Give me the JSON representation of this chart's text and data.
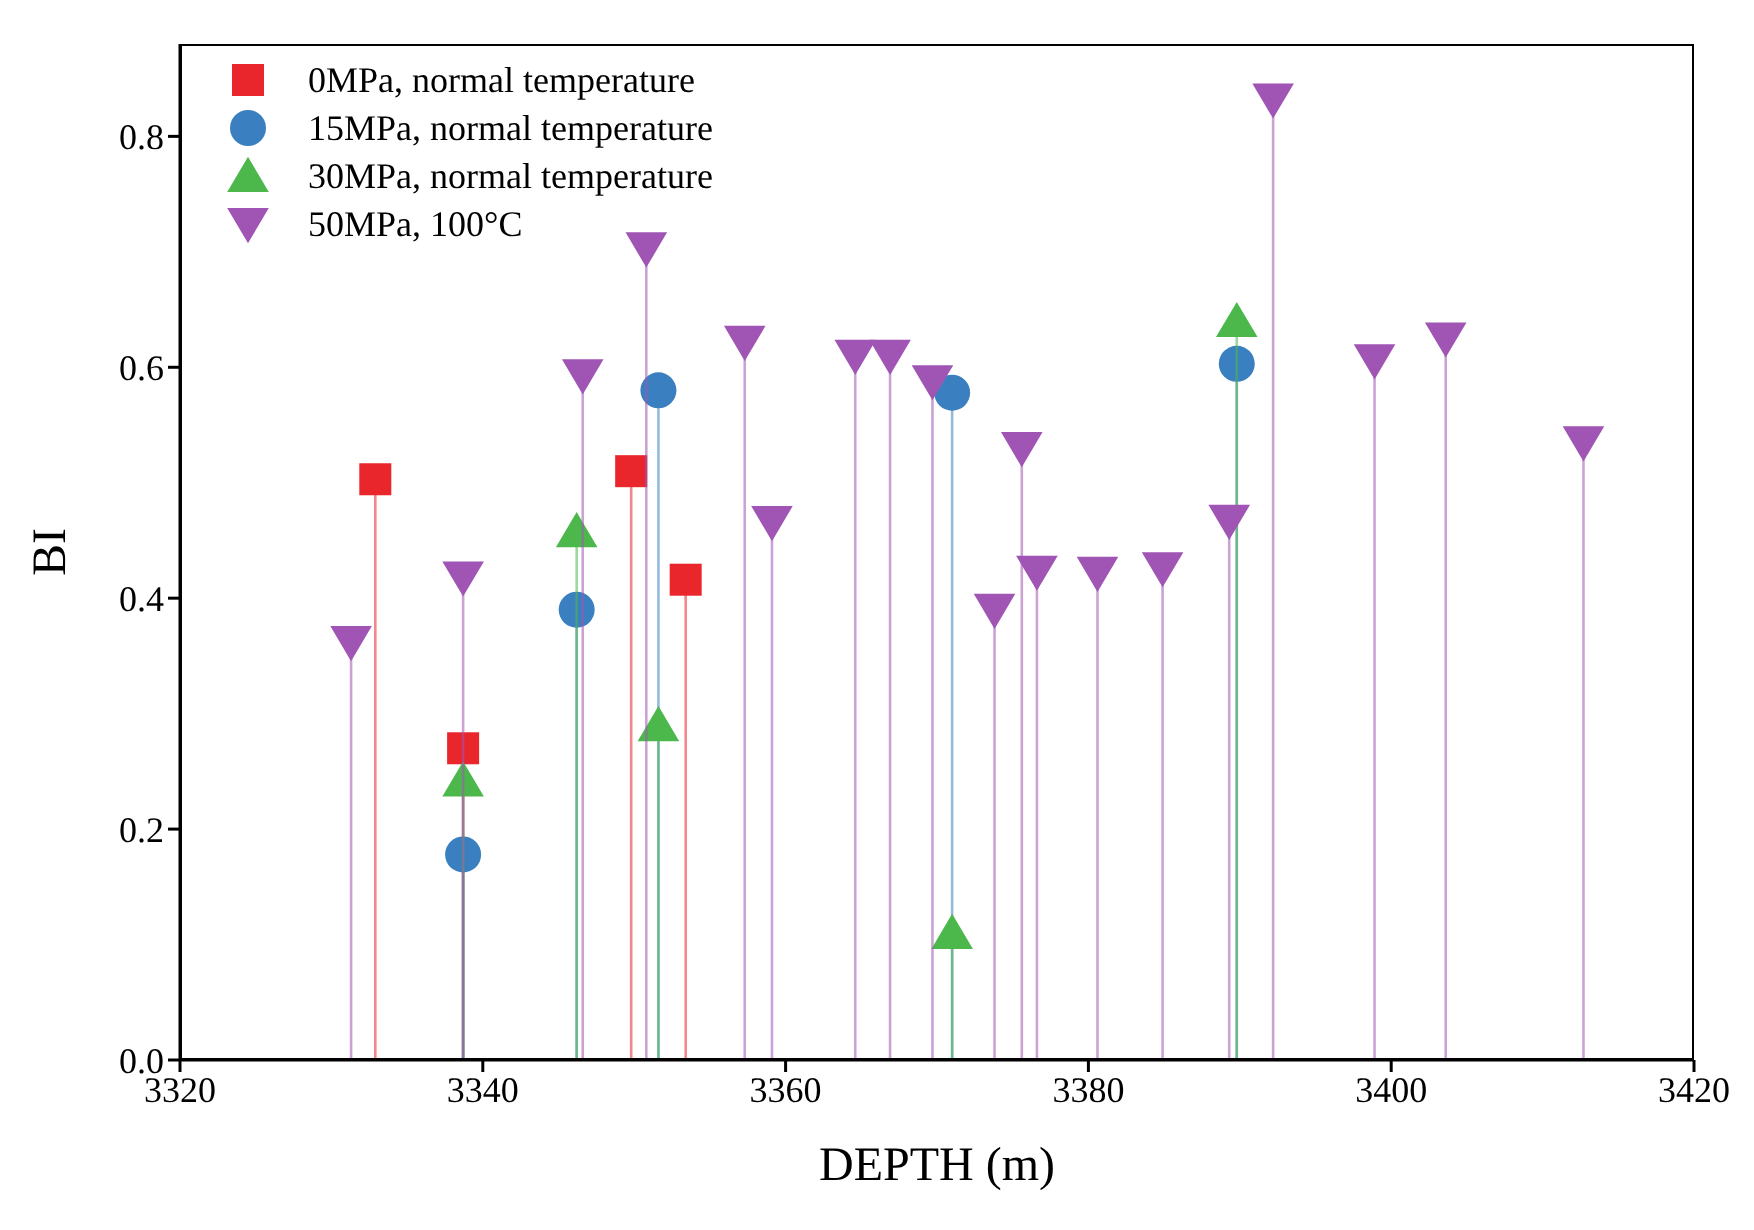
{
  "chart_data": {
    "type": "lollipop",
    "xlabel": "DEPTH (m)",
    "ylabel": "BI",
    "xlim": [
      3320,
      3420
    ],
    "xticks": [
      3320,
      3340,
      3360,
      3380,
      3400,
      3420
    ],
    "ylim": [
      0,
      0.88
    ],
    "yticks": [
      {
        "value": 0,
        "label": "0.0"
      },
      {
        "value": 0.2,
        "label": "0.2"
      },
      {
        "value": 0.4,
        "label": "0.4"
      },
      {
        "value": 0.6,
        "label": "0.6"
      },
      {
        "value": 0.8,
        "label": "0.8"
      }
    ],
    "legend": "top left",
    "series": [
      {
        "name": "0MPa, normal temperature",
        "color": "#e8262b",
        "marker": "square",
        "x": [
          3332.9,
          3338.7,
          3349.8,
          3353.4
        ],
        "values": [
          0.503,
          0.27,
          0.51,
          0.416
        ]
      },
      {
        "name": "15MPa, normal temperature",
        "color": "#3a80c0",
        "marker": "circle",
        "x": [
          3338.7,
          3346.2,
          3351.6,
          3371.0,
          3389.8
        ],
        "values": [
          0.178,
          0.39,
          0.58,
          0.578,
          0.603
        ]
      },
      {
        "name": "30MPa, normal temperature",
        "color": "#4cb84c",
        "marker": "triangle",
        "x": [
          3338.7,
          3346.2,
          3351.6,
          3371.0,
          3389.8
        ],
        "values": [
          0.242,
          0.458,
          0.29,
          0.11,
          0.64
        ]
      },
      {
        "name": "50MPa, 100°C",
        "color": "#a055b5",
        "marker": "triangle-down",
        "x": [
          3331.3,
          3338.7,
          3346.6,
          3350.8,
          3357.3,
          3359.1,
          3364.6,
          3366.9,
          3369.7,
          3373.8,
          3375.6,
          3376.6,
          3380.6,
          3384.9,
          3389.3,
          3392.2,
          3398.9,
          3403.6,
          3412.7
        ],
        "values": [
          0.362,
          0.418,
          0.593,
          0.703,
          0.622,
          0.466,
          0.61,
          0.61,
          0.588,
          0.39,
          0.53,
          0.423,
          0.422,
          0.426,
          0.467,
          0.832,
          0.606,
          0.625,
          0.535
        ]
      }
    ]
  }
}
